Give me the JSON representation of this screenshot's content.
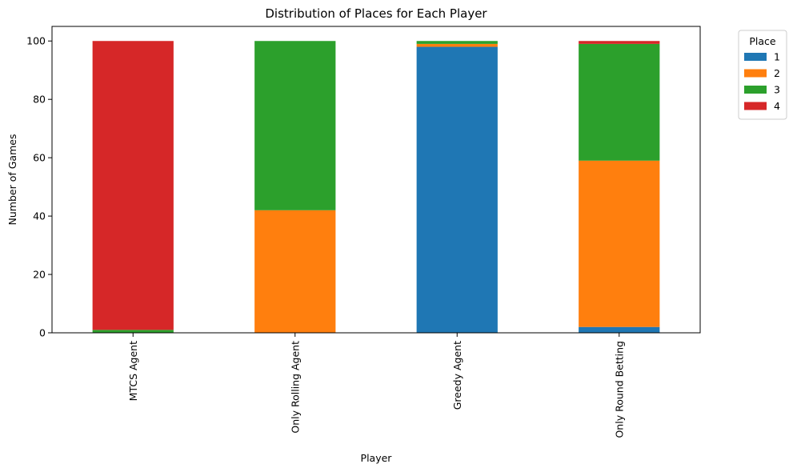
{
  "chart_data": {
    "type": "bar",
    "stacked": true,
    "title": "Distribution of Places for Each Player",
    "xlabel": "Player",
    "ylabel": "Number of Games",
    "categories": [
      "MTCS Agent",
      "Only Rolling Agent",
      "Greedy Agent",
      "Only Round Betting"
    ],
    "ylim": [
      0,
      105
    ],
    "yticks": [
      0,
      20,
      40,
      60,
      80,
      100
    ],
    "grid": false,
    "legend": {
      "title": "Place",
      "placement": "outside-top-right"
    },
    "series": [
      {
        "name": "1",
        "color": "#1f77b4",
        "values": [
          0,
          0,
          98,
          2
        ]
      },
      {
        "name": "2",
        "color": "#ff7f0e",
        "values": [
          0,
          42,
          1,
          57
        ]
      },
      {
        "name": "3",
        "color": "#2ca02c",
        "values": [
          1,
          58,
          1,
          40
        ]
      },
      {
        "name": "4",
        "color": "#d62728",
        "values": [
          99,
          0,
          0,
          1
        ]
      }
    ]
  }
}
